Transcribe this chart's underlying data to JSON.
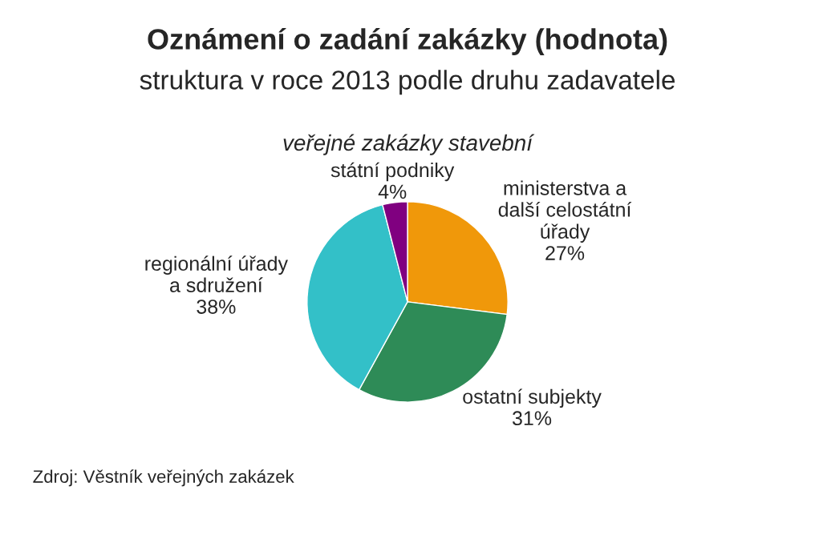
{
  "chart_data": {
    "type": "pie",
    "title": "Oznámení o zadání zakázky (hodnota)",
    "subtitle": "struktura v roce 2013 podle druhu zadavatele",
    "annotations": [
      "veřejné zakázky stavební",
      "Zdroj: Věstník veřejných zakázek"
    ],
    "categories": [
      "ministerstva a\ndalší celostátní\núřady",
      "ostatní subjekty",
      "regionální úřady\na sdružení",
      "státní podniky"
    ],
    "values": [
      27,
      31,
      38,
      4
    ],
    "value_labels": [
      "27%",
      "31%",
      "38%",
      "4%"
    ],
    "colors": [
      "#f0980a",
      "#2e8b57",
      "#33c0c8",
      "#800080"
    ],
    "legend": false
  }
}
